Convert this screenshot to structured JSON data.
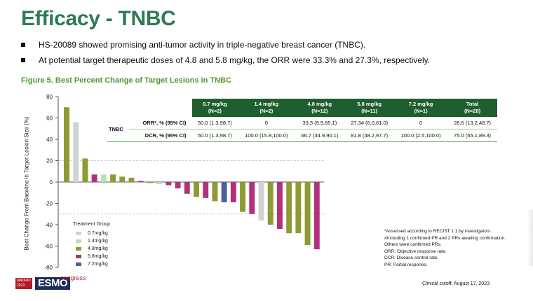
{
  "slide": {
    "title": "Efficacy - TNBC",
    "bullets": [
      "HS-20089 showed promising anti-tumor activity in triple-negative breast cancer (TNBC).",
      "At potential target therapeutic doses of 4.8 and 5.8 mg/kg, the ORR were 33.3% and 27.3%, respectively."
    ],
    "figure_title": "Figure 5. Best Percent Change of Target Lesions in TNBC",
    "footnotes": [
      "*Assessed according to RECIST 1.1 by investigators.",
      "#Including 1 confirmed PR and 2 PRs awaiting confirmation.",
      "Others were confirmed PRs.",
      "ORR: Objective response rate.",
      "DCR: Disease control rate.",
      "PR: Partial response."
    ],
    "cutoff": "Clinical cutoff: August 17, 2023",
    "logo": {
      "city": "MADRID",
      "year": "2023",
      "brand": "ESMO",
      "suffix": "congress"
    }
  },
  "table": {
    "headers": [
      [
        "0.7 mg/kg",
        "(N=2)"
      ],
      [
        "1.4 mg/kg",
        "(N=2)"
      ],
      [
        "4.8 mg/kg",
        "(N=12)"
      ],
      [
        "5.8 mg/kg",
        "(N=11)"
      ],
      [
        "7.2 mg/kg",
        "(N=1)"
      ],
      [
        "Total",
        "(N=28)"
      ]
    ],
    "group": "TNBC",
    "rows": [
      {
        "metric": "ORR*, % (95% CI)",
        "values": [
          "50.0 (1.3,98.7)",
          "0",
          "33.3 (9.9,65.1)",
          "27.3# (6.0,61.0)",
          "0",
          "28.6 (13.2,48.7)"
        ]
      },
      {
        "metric": "DCR, %  (95% CI)",
        "values": [
          "50.0 (1.3,98.7)",
          "100.0 (15.8,100.0)",
          "66.7 (34.9,90.1)",
          "81.8 (48.2,97.7)",
          "100.0 (2.5,100.0)",
          "75.0 (55.1,89.3)"
        ]
      }
    ]
  },
  "chart_data": {
    "type": "bar",
    "title": "Figure 5. Best Percent Change of Target Lesions in TNBC",
    "ylabel": "Best Change From Baseline in Target Lesion Size (%)",
    "xlabel": "",
    "ylim": [
      -80,
      80
    ],
    "yticks": [
      80,
      60,
      40,
      20,
      0,
      -20,
      -40,
      -60,
      -80
    ],
    "reference_lines": [
      20,
      -30
    ],
    "legend_title": "Treatment Group",
    "legend": [
      {
        "name": "0.7mg/kg",
        "color": "#d2d2d2"
      },
      {
        "name": "1.4mg/kg",
        "color": "#b9dfb6"
      },
      {
        "name": "4.8mg/kg",
        "color": "#8f9a32"
      },
      {
        "name": "5.8mg/kg",
        "color": "#b0337a"
      },
      {
        "name": "7.2mg/kg",
        "color": "#4a5f9c"
      }
    ],
    "legend_position": "bottom-left",
    "groups": [
      "0.7mg/kg",
      "1.4mg/kg",
      "4.8mg/kg",
      "5.8mg/kg",
      "7.2mg/kg"
    ],
    "bars": [
      {
        "group": "4.8mg/kg",
        "value": 70
      },
      {
        "group": "0.7mg/kg",
        "value": 56
      },
      {
        "group": "4.8mg/kg",
        "value": 22
      },
      {
        "group": "5.8mg/kg",
        "value": 7
      },
      {
        "group": "1.4mg/kg",
        "value": 7
      },
      {
        "group": "4.8mg/kg",
        "value": 7
      },
      {
        "group": "4.8mg/kg",
        "value": 5
      },
      {
        "group": "4.8mg/kg",
        "value": 4
      },
      {
        "group": "5.8mg/kg",
        "value": 1
      },
      {
        "group": "4.8mg/kg",
        "value": -1
      },
      {
        "group": "1.4mg/kg",
        "value": -2
      },
      {
        "group": "5.8mg/kg",
        "value": -3
      },
      {
        "group": "5.8mg/kg",
        "value": -6
      },
      {
        "group": "5.8mg/kg",
        "value": -11
      },
      {
        "group": "4.8mg/kg",
        "value": -14
      },
      {
        "group": "5.8mg/kg",
        "value": -15
      },
      {
        "group": "4.8mg/kg",
        "value": -18
      },
      {
        "group": "7.2mg/kg",
        "value": -19
      },
      {
        "group": "5.8mg/kg",
        "value": -19
      },
      {
        "group": "4.8mg/kg",
        "value": -28
      },
      {
        "group": "5.8mg/kg",
        "value": -30
      },
      {
        "group": "0.7mg/kg",
        "value": -36
      },
      {
        "group": "4.8mg/kg",
        "value": -40
      },
      {
        "group": "5.8mg/kg",
        "value": -44
      },
      {
        "group": "4.8mg/kg",
        "value": -48
      },
      {
        "group": "4.8mg/kg",
        "value": -48
      },
      {
        "group": "4.8mg/kg",
        "value": -59
      },
      {
        "group": "5.8mg/kg",
        "value": -63
      }
    ]
  }
}
